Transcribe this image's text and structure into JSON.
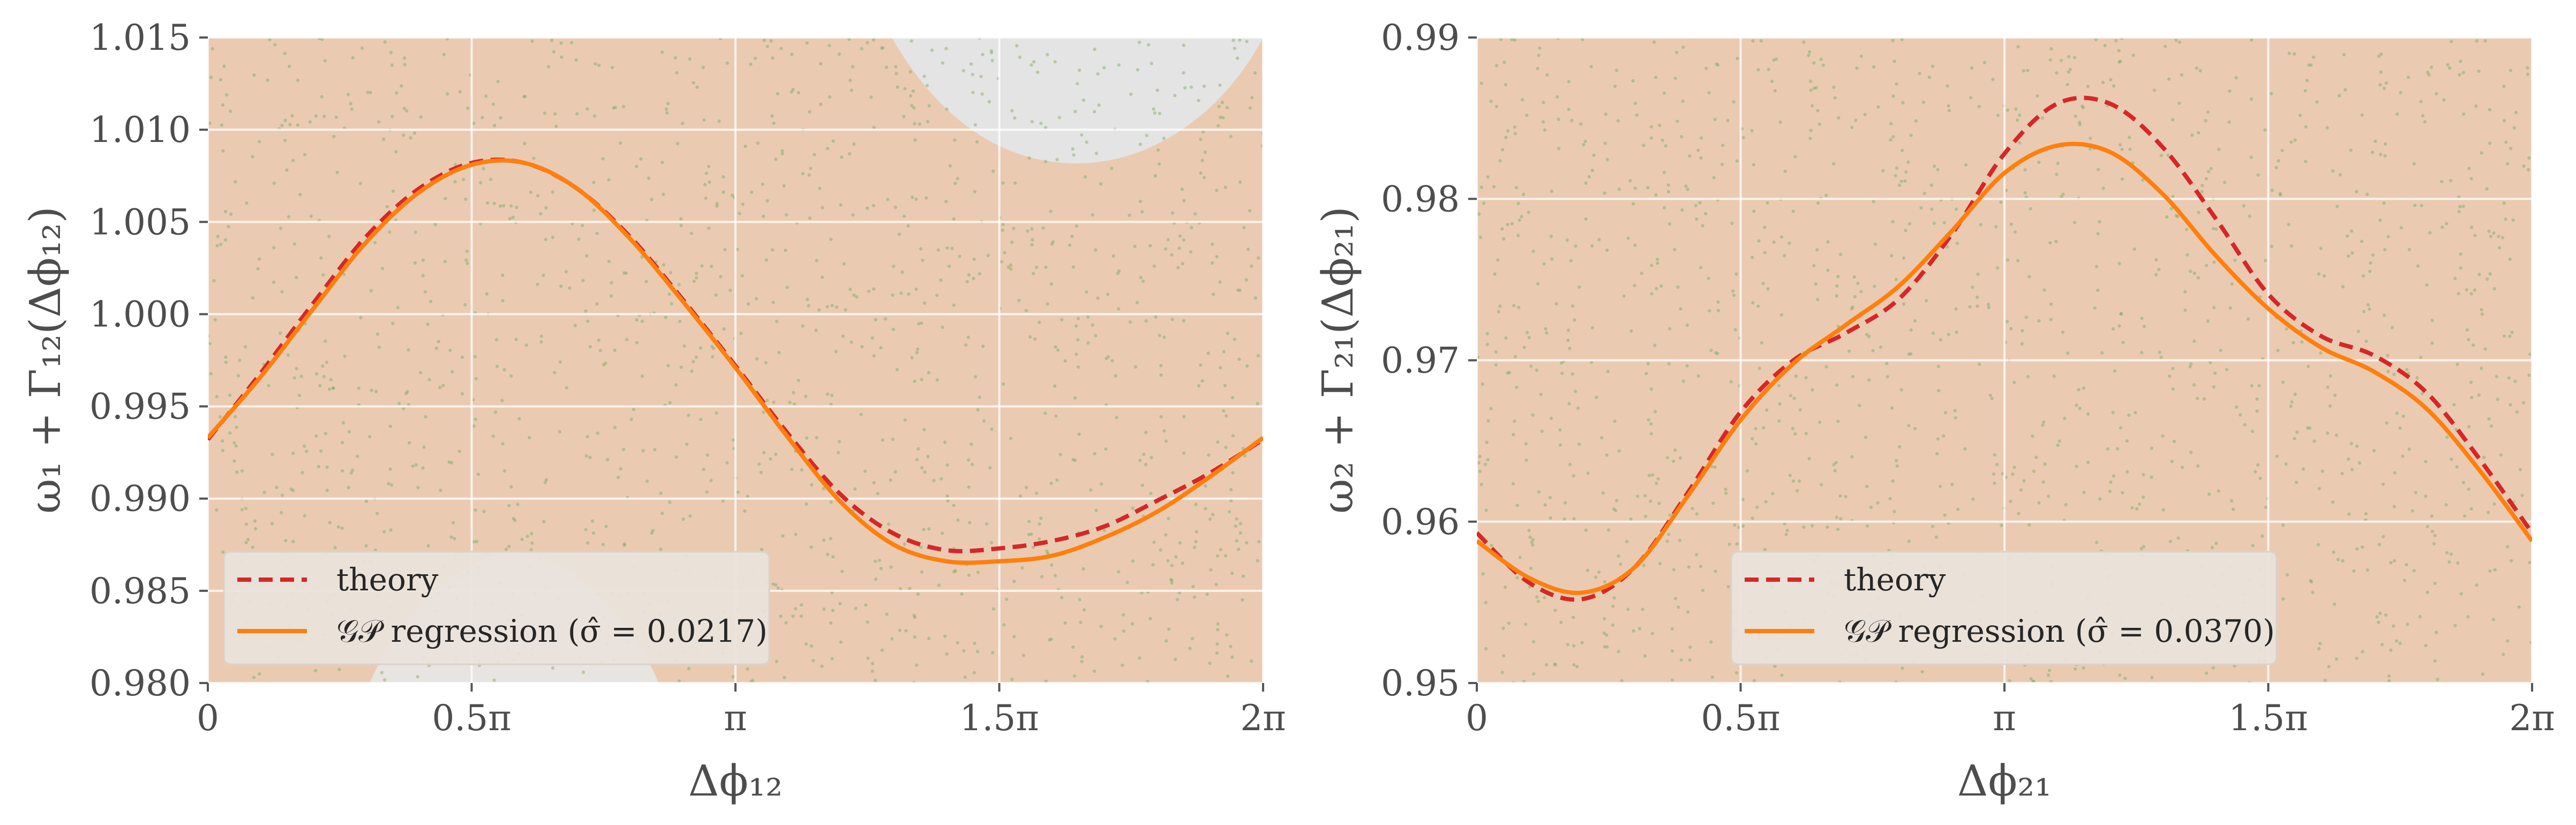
{
  "chart_data": [
    {
      "type": "line",
      "xlabel": "Δϕ₁₂",
      "ylabel": "ω₁ + Γ₁₂(Δϕ₁₂)",
      "xlim": [
        0,
        6.2832
      ],
      "ylim": [
        0.98,
        1.015
      ],
      "x_tick_values": [
        0,
        1.5708,
        3.1416,
        4.7124,
        6.2832
      ],
      "x_tick_labels": [
        "0",
        "0.5π",
        "π",
        "1.5π",
        "2π"
      ],
      "y_tick_values": [
        0.98,
        0.985,
        0.99,
        0.995,
        1.0,
        1.005,
        1.01,
        1.015
      ],
      "y_tick_labels": [
        "0.980",
        "0.985",
        "0.990",
        "0.995",
        "1.000",
        "1.005",
        "1.010",
        "1.015"
      ],
      "grid": true,
      "legend_position": "lower-left",
      "series": [
        {
          "name": "theory",
          "style": "dashed",
          "color": "#d62728",
          "x": [
            0,
            0.3142,
            0.6283,
            0.9425,
            1.2566,
            1.5708,
            1.885,
            2.1991,
            2.5133,
            2.8274,
            3.1416,
            3.4558,
            3.7699,
            4.0841,
            4.3982,
            4.7124,
            5.0265,
            5.3407,
            5.6549,
            5.969,
            6.2832
          ],
          "y": [
            0.9932,
            0.9968,
            1.0006,
            1.0042,
            1.0068,
            1.0082,
            1.0082,
            1.0068,
            1.0042,
            1.0008,
            0.9972,
            0.9935,
            0.9902,
            0.9881,
            0.9872,
            0.9873,
            0.9877,
            0.9885,
            0.9899,
            0.9914,
            0.9932
          ]
        },
        {
          "name": "𝒢𝒫 regression (σ̂ = 0.0217)",
          "style": "solid",
          "color": "#ff7f0e",
          "x": [
            0,
            0.3142,
            0.6283,
            0.9425,
            1.2566,
            1.5708,
            1.885,
            2.1991,
            2.5133,
            2.8274,
            3.1416,
            3.4558,
            3.7699,
            4.0841,
            4.3982,
            4.7124,
            5.0265,
            5.3407,
            5.6549,
            5.969,
            6.2832
          ],
          "y": [
            0.9933,
            0.9966,
            1.0003,
            1.0039,
            1.0066,
            1.0081,
            1.0082,
            1.0068,
            1.0041,
            1.0007,
            0.9971,
            0.9933,
            0.9898,
            0.9875,
            0.9866,
            0.9866,
            0.9869,
            0.9879,
            0.9893,
            0.9912,
            0.9933
          ]
        }
      ]
    },
    {
      "type": "line",
      "xlabel": "Δϕ₂₁",
      "ylabel": "ω₂ + Γ₂₁(Δϕ₂₁)",
      "xlim": [
        0,
        6.2832
      ],
      "ylim": [
        0.95,
        0.99
      ],
      "x_tick_values": [
        0,
        1.5708,
        3.1416,
        4.7124,
        6.2832
      ],
      "x_tick_labels": [
        "0",
        "0.5π",
        "π",
        "1.5π",
        "2π"
      ],
      "y_tick_values": [
        0.95,
        0.96,
        0.97,
        0.98,
        0.99
      ],
      "y_tick_labels": [
        "0.95",
        "0.96",
        "0.97",
        "0.98",
        "0.99"
      ],
      "grid": true,
      "legend_position": "lower-center",
      "series": [
        {
          "name": "theory",
          "style": "dashed",
          "color": "#d62728",
          "x": [
            0,
            0.3142,
            0.6283,
            0.9425,
            1.2566,
            1.5708,
            1.885,
            2.1991,
            2.5133,
            2.8274,
            3.1416,
            3.4558,
            3.7699,
            4.0841,
            4.3982,
            4.7124,
            5.0265,
            5.3407,
            5.6549,
            5.969,
            6.2832
          ],
          "y": [
            0.9593,
            0.9562,
            0.9552,
            0.9572,
            0.9618,
            0.9668,
            0.97,
            0.9717,
            0.9738,
            0.9778,
            0.9828,
            0.9859,
            0.9859,
            0.9832,
            0.9788,
            0.9741,
            0.9715,
            0.9703,
            0.968,
            0.9639,
            0.9593
          ]
        },
        {
          "name": "𝒢𝒫 regression (σ̂ = 0.0370)",
          "style": "solid",
          "color": "#ff7f0e",
          "x": [
            0,
            0.3142,
            0.6283,
            0.9425,
            1.2566,
            1.5708,
            1.885,
            2.1991,
            2.5133,
            2.8274,
            3.1416,
            3.4558,
            3.7699,
            4.0841,
            4.3982,
            4.7124,
            5.0265,
            5.3407,
            5.6549,
            5.969,
            6.2832
          ],
          "y": [
            0.9588,
            0.9565,
            0.9556,
            0.9572,
            0.9616,
            0.9663,
            0.9698,
            0.9722,
            0.9746,
            0.978,
            0.9816,
            0.9833,
            0.9829,
            0.9803,
            0.9765,
            0.9732,
            0.9708,
            0.9693,
            0.967,
            0.9632,
            0.9588
          ]
        }
      ]
    }
  ]
}
